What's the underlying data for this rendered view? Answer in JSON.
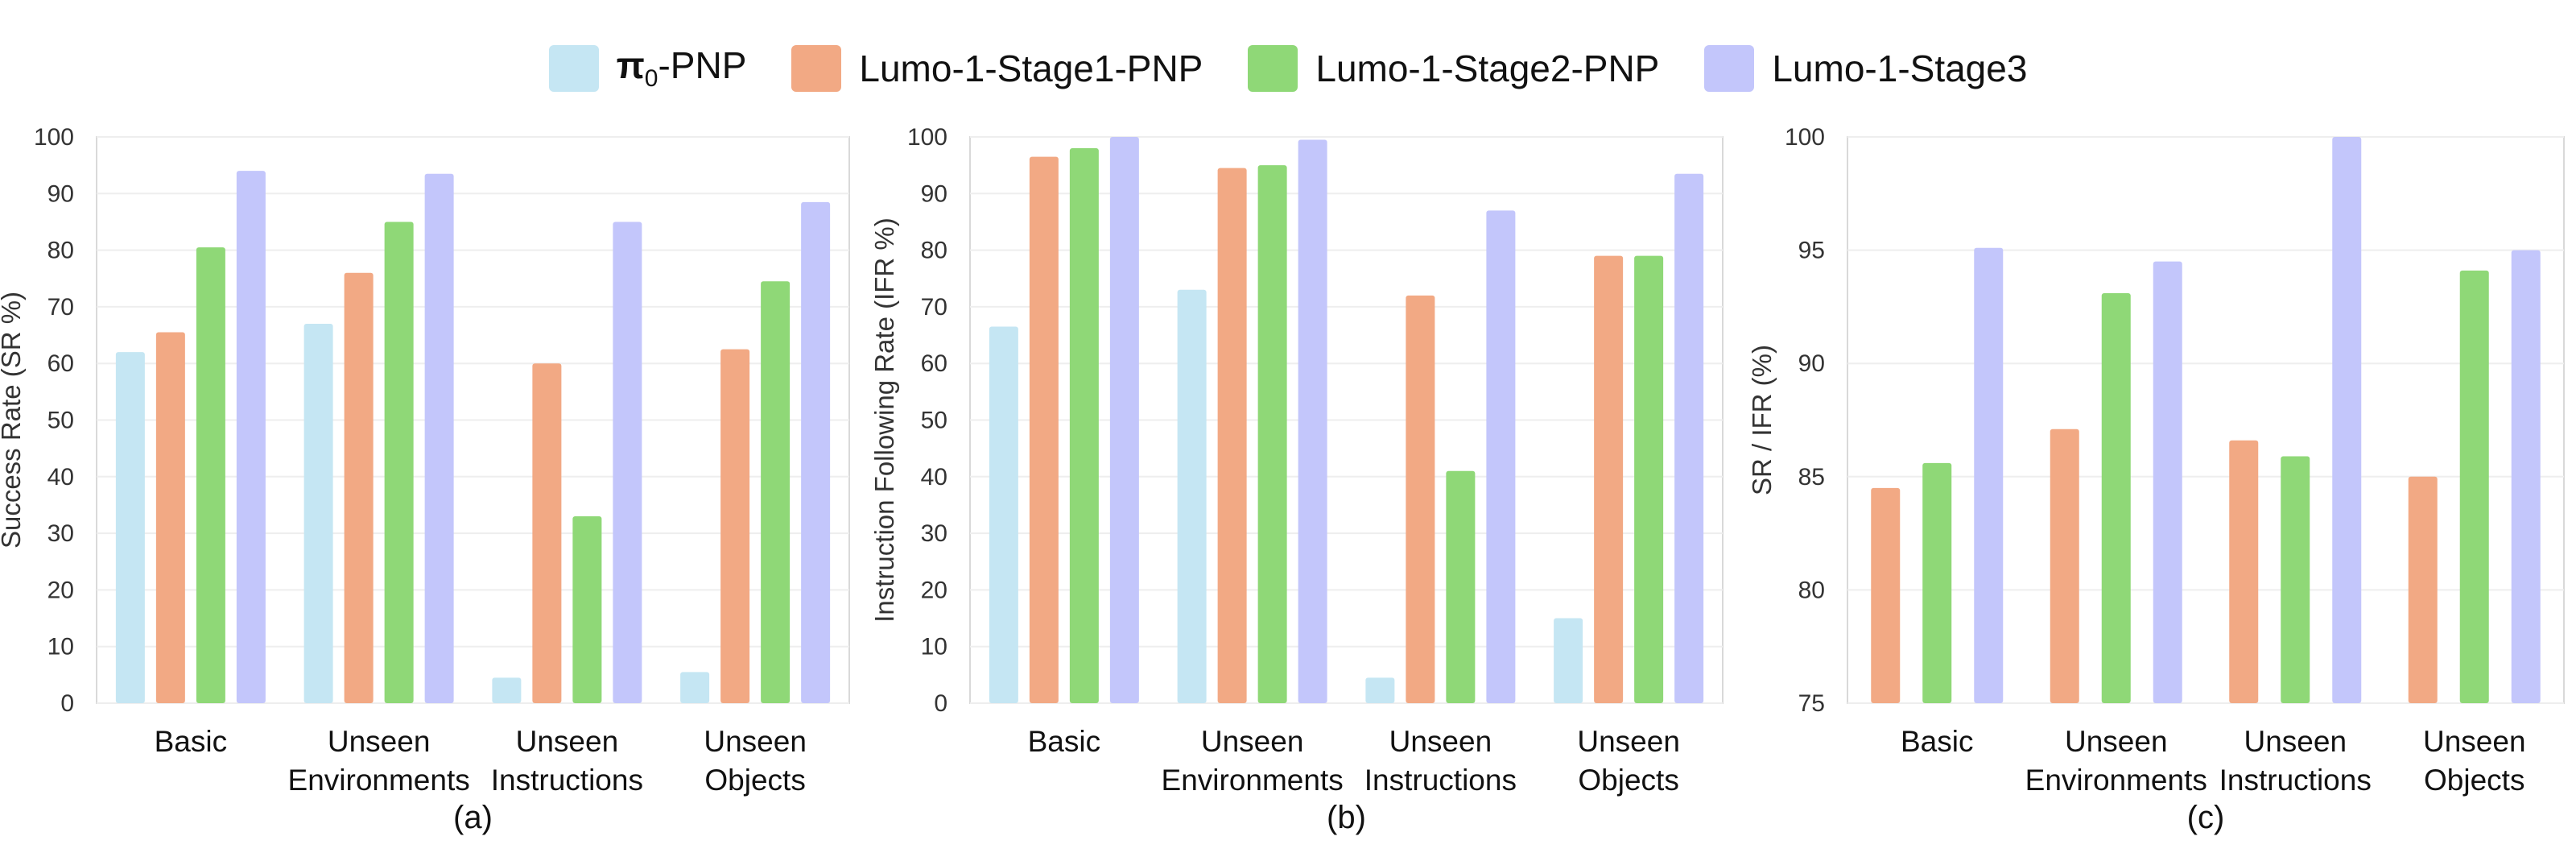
{
  "colors": {
    "pi0_PNP": "#c5e6f3",
    "stage1": "#f2a984",
    "stage2": "#8fd877",
    "stage3": "#c3c6fb"
  },
  "legend": [
    {
      "name": "π0-PNP",
      "color": "#c5e6f3"
    },
    {
      "name": "Lumo-1-Stage1-PNP",
      "color": "#f2a984"
    },
    {
      "name": "Lumo-1-Stage2-PNP",
      "color": "#8fd877"
    },
    {
      "name": "Lumo-1-Stage3",
      "color": "#c3c6fb"
    }
  ],
  "chart_data": [
    {
      "type": "bar",
      "caption": "(a)",
      "ylabel": "Success Rate (SR %)",
      "ylim": [
        0,
        100
      ],
      "yticks": [
        0,
        10,
        20,
        30,
        40,
        50,
        60,
        70,
        80,
        90,
        100
      ],
      "categories": [
        [
          "Basic"
        ],
        [
          "Unseen",
          "Environments"
        ],
        [
          "Unseen",
          "Instructions"
        ],
        [
          "Unseen",
          "Objects"
        ]
      ],
      "series": [
        {
          "name": "π0-PNP",
          "color": "#c5e6f3",
          "values": [
            62,
            67,
            4.5,
            5.5
          ]
        },
        {
          "name": "Lumo-1-Stage1-PNP",
          "color": "#f2a984",
          "values": [
            65.5,
            76,
            60,
            62.5
          ]
        },
        {
          "name": "Lumo-1-Stage2-PNP",
          "color": "#8fd877",
          "values": [
            80.5,
            85,
            33,
            74.5
          ]
        },
        {
          "name": "Lumo-1-Stage3",
          "color": "#c3c6fb",
          "values": [
            94,
            93.5,
            85,
            88.5
          ]
        }
      ]
    },
    {
      "type": "bar",
      "caption": "(b)",
      "ylabel": "Instruction Following Rate (IFR %)",
      "ylim": [
        0,
        100
      ],
      "yticks": [
        0,
        10,
        20,
        30,
        40,
        50,
        60,
        70,
        80,
        90,
        100
      ],
      "categories": [
        [
          "Basic"
        ],
        [
          "Unseen",
          "Environments"
        ],
        [
          "Unseen",
          "Instructions"
        ],
        [
          "Unseen",
          "Objects"
        ]
      ],
      "series": [
        {
          "name": "π0-PNP",
          "color": "#c5e6f3",
          "values": [
            66.5,
            73,
            4.5,
            15
          ]
        },
        {
          "name": "Lumo-1-Stage1-PNP",
          "color": "#f2a984",
          "values": [
            96.5,
            94.5,
            72,
            79
          ]
        },
        {
          "name": "Lumo-1-Stage2-PNP",
          "color": "#8fd877",
          "values": [
            98,
            95,
            41,
            79
          ]
        },
        {
          "name": "Lumo-1-Stage3",
          "color": "#c3c6fb",
          "values": [
            100,
            99.5,
            87,
            93.5
          ]
        }
      ]
    },
    {
      "type": "bar",
      "caption": "(c)",
      "ylabel": "SR / IFR (%)",
      "ylim": [
        75,
        100
      ],
      "yticks": [
        75,
        80,
        85,
        90,
        95,
        100
      ],
      "categories": [
        [
          "Basic"
        ],
        [
          "Unseen",
          "Environments"
        ],
        [
          "Unseen",
          "Instructions"
        ],
        [
          "Unseen",
          "Objects"
        ]
      ],
      "series": [
        {
          "name": "Lumo-1-Stage1-PNP",
          "color": "#f2a984",
          "values": [
            84.5,
            87.1,
            86.6,
            85
          ]
        },
        {
          "name": "Lumo-1-Stage2-PNP",
          "color": "#8fd877",
          "values": [
            85.6,
            93.1,
            85.9,
            94.1
          ]
        },
        {
          "name": "Lumo-1-Stage3",
          "color": "#c3c6fb",
          "values": [
            95.1,
            94.5,
            100,
            95
          ]
        }
      ]
    }
  ]
}
